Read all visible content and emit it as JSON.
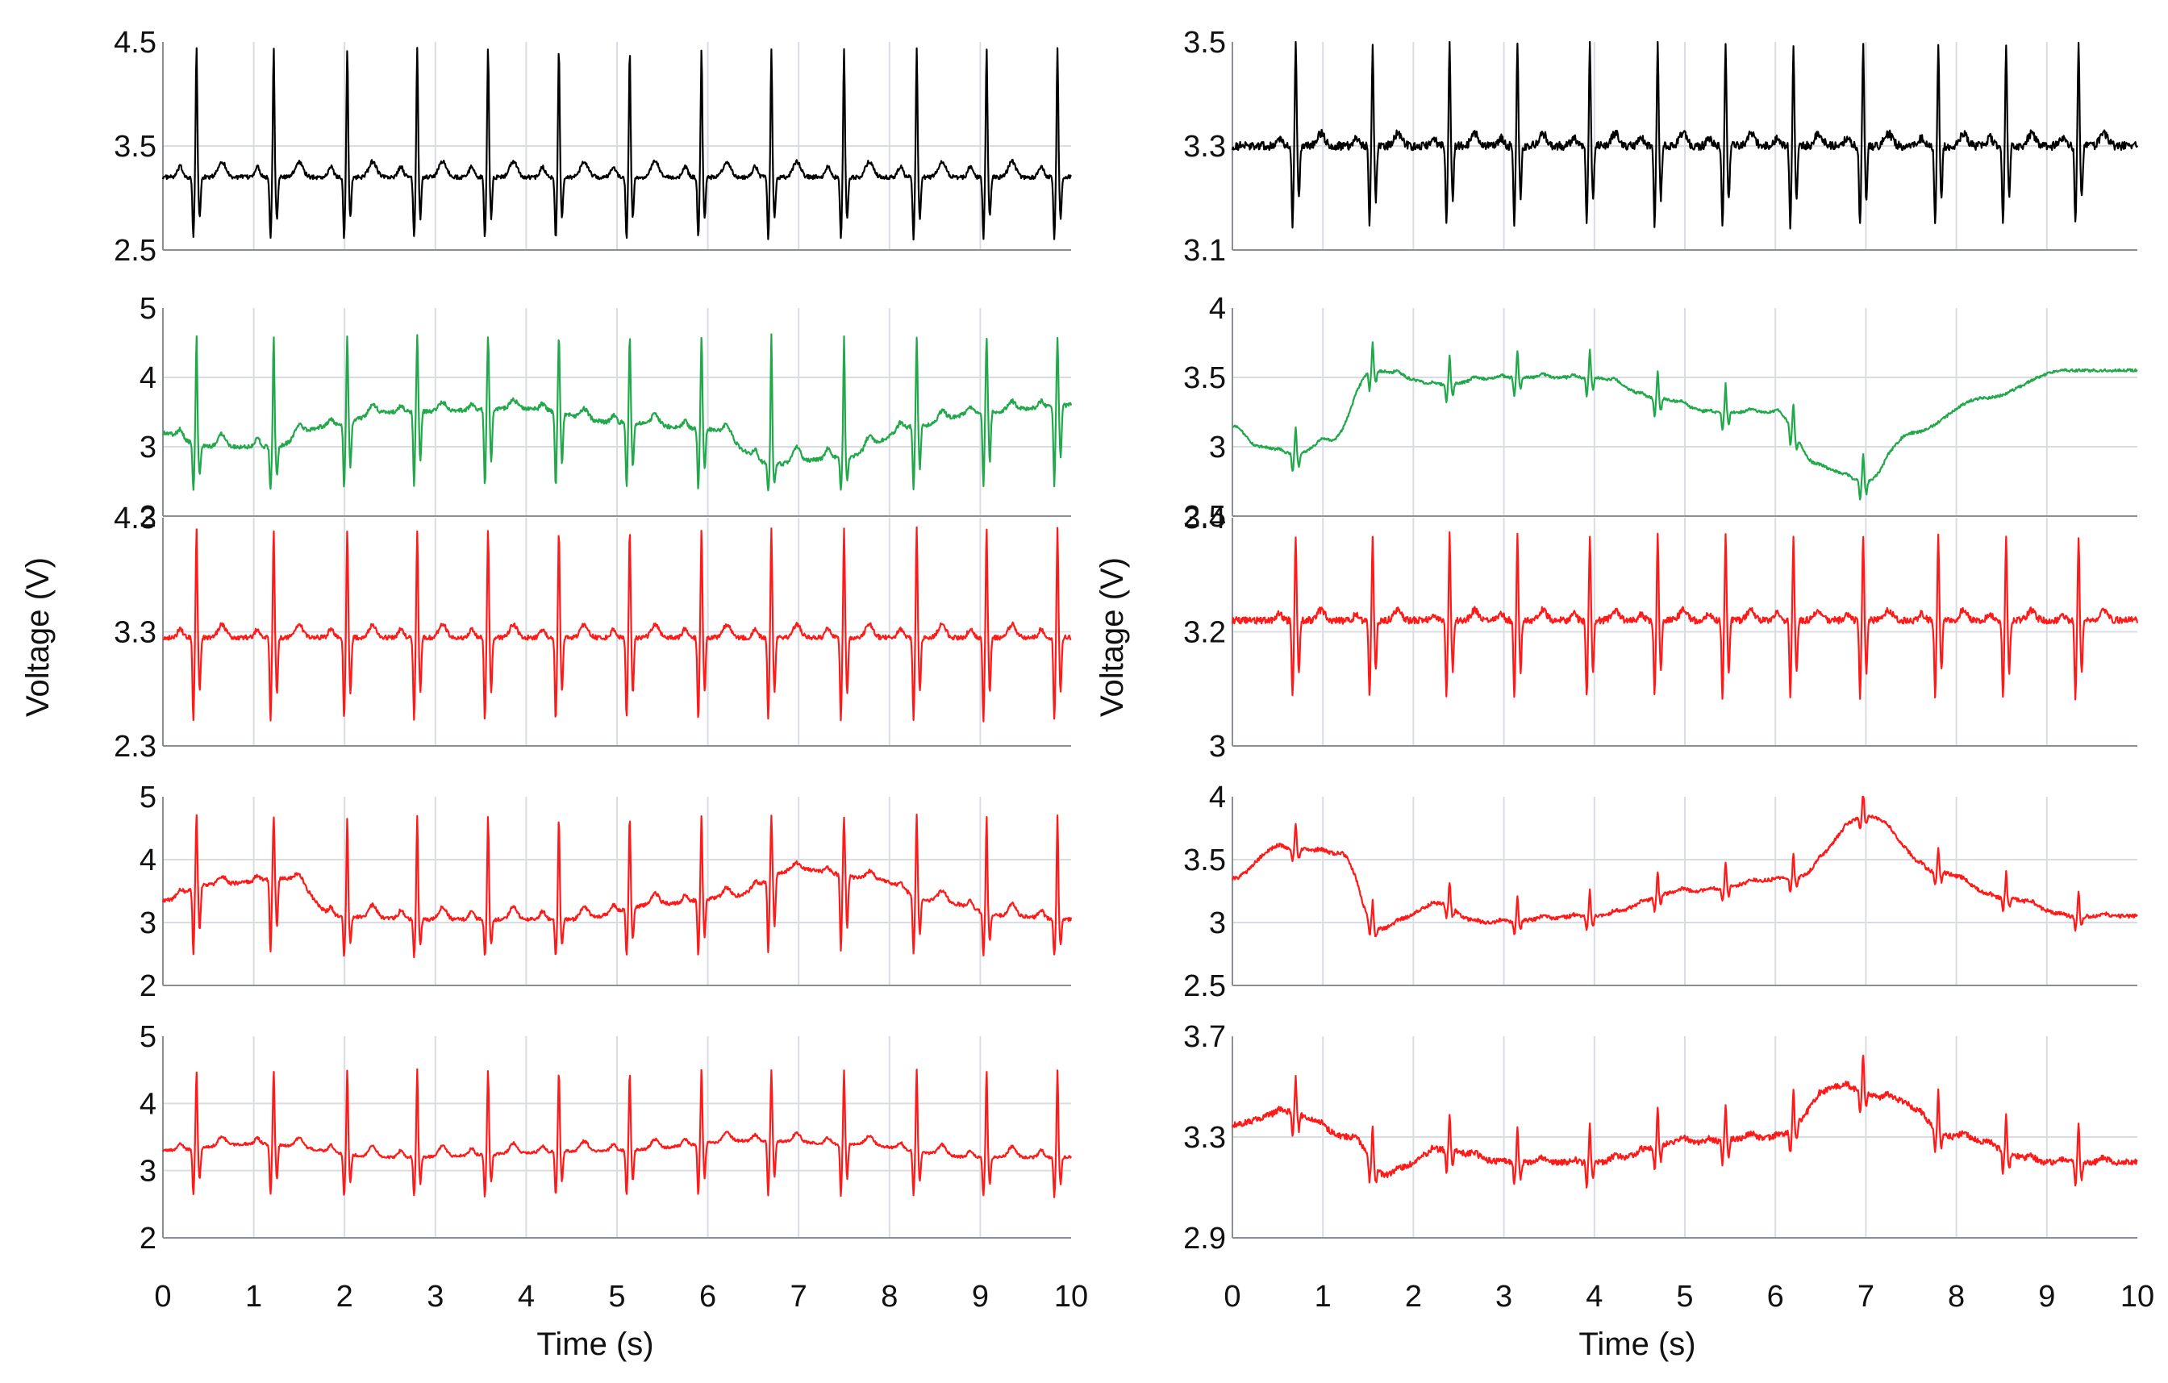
{
  "chart_data": [
    {
      "id": "L1",
      "type": "line",
      "column": "left",
      "row": 0,
      "color": "#000000",
      "ylim": [
        2.5,
        4.5
      ],
      "yticks": [
        "2.5",
        "3.5",
        "4.5"
      ],
      "baseline": 3.5,
      "offset": -0.3,
      "beats": [
        0.37,
        1.22,
        2.03,
        2.8,
        3.58,
        4.36,
        5.14,
        5.93,
        6.7,
        7.5,
        8.3,
        9.07,
        9.85
      ],
      "r_peak": 4.45,
      "s_trough": 2.55,
      "noise": 0.02,
      "wander": [],
      "xlim": [
        0,
        10
      ]
    },
    {
      "id": "L2",
      "type": "line",
      "column": "left",
      "row": 1,
      "color": "#21a84a",
      "ylim": [
        2,
        5
      ],
      "yticks": [
        "2",
        "3",
        "4",
        "5"
      ],
      "baseline": 3.5,
      "offset": 0,
      "beats": [
        0.37,
        1.22,
        2.03,
        2.8,
        3.58,
        4.36,
        5.14,
        5.93,
        6.7,
        7.5,
        8.3,
        9.07,
        9.85
      ],
      "r_peak": 4.6,
      "s_trough": 2.3,
      "noise": 0.03,
      "wander": [
        [
          0,
          3.2
        ],
        [
          0.5,
          3.0
        ],
        [
          1.2,
          3.0
        ],
        [
          1.8,
          3.3
        ],
        [
          2.5,
          3.5
        ],
        [
          4.0,
          3.55
        ],
        [
          5.0,
          3.35
        ],
        [
          6.0,
          3.25
        ],
        [
          6.7,
          2.75
        ],
        [
          7.5,
          2.85
        ],
        [
          8.3,
          3.3
        ],
        [
          9.0,
          3.5
        ],
        [
          10,
          3.6
        ]
      ],
      "xlim": [
        0,
        10
      ]
    },
    {
      "id": "L3",
      "type": "line",
      "column": "left",
      "row": 2,
      "color": "#ff1a1a",
      "ylim": [
        2.3,
        4.3
      ],
      "yticks": [
        "2.3",
        "3.3",
        "4.3"
      ],
      "baseline": 3.3,
      "offset": -0.05,
      "beats": [
        0.37,
        1.22,
        2.03,
        2.8,
        3.58,
        4.36,
        5.14,
        5.93,
        6.7,
        7.5,
        8.3,
        9.07,
        9.85
      ],
      "r_peak": 4.2,
      "s_trough": 2.45,
      "noise": 0.02,
      "wander": [],
      "xlim": [
        0,
        10
      ]
    },
    {
      "id": "L4",
      "type": "line",
      "column": "left",
      "row": 3,
      "color": "#ff1a1a",
      "ylim": [
        2,
        5
      ],
      "yticks": [
        "2",
        "3",
        "4",
        "5"
      ],
      "baseline": 3.3,
      "offset": 0,
      "beats": [
        0.37,
        1.22,
        2.03,
        2.8,
        3.58,
        4.36,
        5.14,
        5.93,
        6.7,
        7.5,
        8.3,
        9.07,
        9.85
      ],
      "r_peak": 4.7,
      "s_trough": 2.4,
      "noise": 0.03,
      "wander": [
        [
          0,
          3.35
        ],
        [
          0.5,
          3.6
        ],
        [
          1.4,
          3.7
        ],
        [
          1.9,
          3.1
        ],
        [
          3.0,
          3.05
        ],
        [
          4.5,
          3.05
        ],
        [
          5.5,
          3.3
        ],
        [
          6.2,
          3.4
        ],
        [
          7.0,
          3.85
        ],
        [
          7.8,
          3.7
        ],
        [
          8.5,
          3.35
        ],
        [
          9.3,
          3.1
        ],
        [
          10,
          3.05
        ]
      ],
      "xlim": [
        0,
        10
      ]
    },
    {
      "id": "L5",
      "type": "line",
      "column": "left",
      "row": 4,
      "color": "#ff1a1a",
      "ylim": [
        2,
        5
      ],
      "yticks": [
        "2",
        "3",
        "4",
        "5"
      ],
      "baseline": 3.3,
      "offset": 0,
      "beats": [
        0.37,
        1.22,
        2.03,
        2.8,
        3.58,
        4.36,
        5.14,
        5.93,
        6.7,
        7.5,
        8.3,
        9.07,
        9.85
      ],
      "r_peak": 4.5,
      "s_trough": 2.55,
      "noise": 0.02,
      "wander": [
        [
          0,
          3.3
        ],
        [
          1.0,
          3.4
        ],
        [
          2.5,
          3.2
        ],
        [
          5.0,
          3.3
        ],
        [
          6.5,
          3.45
        ],
        [
          7.5,
          3.4
        ],
        [
          9.0,
          3.2
        ],
        [
          10,
          3.2
        ]
      ],
      "xlim": [
        0,
        10
      ]
    },
    {
      "id": "R1",
      "type": "line",
      "column": "right",
      "row": 0,
      "color": "#000000",
      "ylim": [
        3.1,
        3.5
      ],
      "yticks": [
        "3.1",
        "3.3",
        "3.5"
      ],
      "baseline": 3.3,
      "offset": 0,
      "beats": [
        0.7,
        1.55,
        2.4,
        3.15,
        3.95,
        4.7,
        5.45,
        6.2,
        6.97,
        7.8,
        8.55,
        9.35
      ],
      "r_peak": 3.5,
      "s_trough": 3.13,
      "noise": 0.008,
      "wander": [],
      "xlim": [
        0,
        10
      ]
    },
    {
      "id": "R2",
      "type": "line",
      "column": "right",
      "row": 1,
      "color": "#21a84a",
      "ylim": [
        2.5,
        4
      ],
      "yticks": [
        "2.5",
        "3",
        "3.5",
        "4"
      ],
      "baseline": 3.3,
      "offset": 0,
      "beats": [
        0.7,
        1.55,
        2.4,
        3.15,
        3.95,
        4.7,
        5.45,
        6.2,
        6.97
      ],
      "r_peak": 0.2,
      "s_trough": -0.15,
      "noise": 0.01,
      "relative": true,
      "wander": [
        [
          0,
          3.15
        ],
        [
          0.3,
          3.0
        ],
        [
          0.7,
          2.95
        ],
        [
          1.1,
          3.05
        ],
        [
          1.55,
          3.55
        ],
        [
          2.3,
          3.45
        ],
        [
          3.0,
          3.5
        ],
        [
          4.0,
          3.5
        ],
        [
          4.7,
          3.35
        ],
        [
          5.3,
          3.25
        ],
        [
          6.0,
          3.25
        ],
        [
          6.5,
          2.85
        ],
        [
          7.0,
          2.75
        ],
        [
          7.5,
          3.1
        ],
        [
          8.3,
          3.35
        ],
        [
          9.2,
          3.55
        ],
        [
          10,
          3.55
        ]
      ],
      "xlim": [
        0,
        10
      ]
    },
    {
      "id": "R3",
      "type": "line",
      "column": "right",
      "row": 2,
      "color": "#ff1a1a",
      "ylim": [
        3.0,
        3.4
      ],
      "yticks": [
        "3",
        "3.2",
        "3.4"
      ],
      "baseline": 3.22,
      "offset": 0,
      "beats": [
        0.7,
        1.55,
        2.4,
        3.15,
        3.95,
        4.7,
        5.45,
        6.2,
        6.97,
        7.8,
        8.55,
        9.35
      ],
      "r_peak": 3.37,
      "s_trough": 3.07,
      "noise": 0.006,
      "wander": [],
      "xlim": [
        0,
        10
      ]
    },
    {
      "id": "R4",
      "type": "line",
      "column": "right",
      "row": 3,
      "color": "#ff1a1a",
      "ylim": [
        2.5,
        4
      ],
      "yticks": [
        "2.5",
        "3",
        "3.5",
        "4"
      ],
      "baseline": 3.3,
      "offset": 0,
      "beats": [
        0.7,
        1.55,
        2.4,
        3.15,
        3.95,
        4.7,
        5.45,
        6.2,
        6.97,
        7.8,
        8.55,
        9.35
      ],
      "r_peak": 0.2,
      "s_trough": -0.12,
      "noise": 0.015,
      "relative": true,
      "wander": [
        [
          0,
          3.35
        ],
        [
          0.5,
          3.6
        ],
        [
          1.2,
          3.55
        ],
        [
          1.6,
          2.95
        ],
        [
          2.3,
          3.15
        ],
        [
          2.7,
          3.0
        ],
        [
          4.0,
          3.05
        ],
        [
          5.0,
          3.25
        ],
        [
          6.2,
          3.35
        ],
        [
          7.0,
          3.85
        ],
        [
          7.8,
          3.4
        ],
        [
          8.5,
          3.2
        ],
        [
          9.3,
          3.05
        ],
        [
          10,
          3.05
        ]
      ],
      "xlim": [
        0,
        10
      ]
    },
    {
      "id": "R5",
      "type": "line",
      "column": "right",
      "row": 4,
      "color": "#ff1a1a",
      "ylim": [
        2.9,
        3.7
      ],
      "yticks": [
        "2.9",
        "3.3",
        "3.7"
      ],
      "baseline": 3.3,
      "offset": 0,
      "beats": [
        0.7,
        1.55,
        2.4,
        3.15,
        3.95,
        4.7,
        5.45,
        6.2,
        6.97,
        7.8,
        8.55,
        9.35
      ],
      "r_peak": 0.15,
      "s_trough": -0.1,
      "noise": 0.012,
      "relative": true,
      "wander": [
        [
          0,
          3.35
        ],
        [
          0.6,
          3.4
        ],
        [
          1.3,
          3.3
        ],
        [
          1.7,
          3.15
        ],
        [
          2.3,
          3.25
        ],
        [
          3.0,
          3.2
        ],
        [
          4.0,
          3.2
        ],
        [
          5.0,
          3.28
        ],
        [
          6.0,
          3.3
        ],
        [
          6.7,
          3.5
        ],
        [
          7.3,
          3.45
        ],
        [
          8.0,
          3.3
        ],
        [
          9.0,
          3.2
        ],
        [
          10,
          3.2
        ]
      ],
      "xlim": [
        0,
        10
      ]
    }
  ],
  "axes": {
    "x_ticks": [
      "0",
      "1",
      "2",
      "3",
      "4",
      "5",
      "6",
      "7",
      "8",
      "9",
      "10"
    ],
    "x_label_left": "Time (s)",
    "x_label_right": "Time (s)",
    "y_label_left": "Voltage (V)",
    "y_label_right": "Voltage (V)"
  },
  "style": {
    "grid": "#d9dde3",
    "frame": "#8a8f96"
  }
}
